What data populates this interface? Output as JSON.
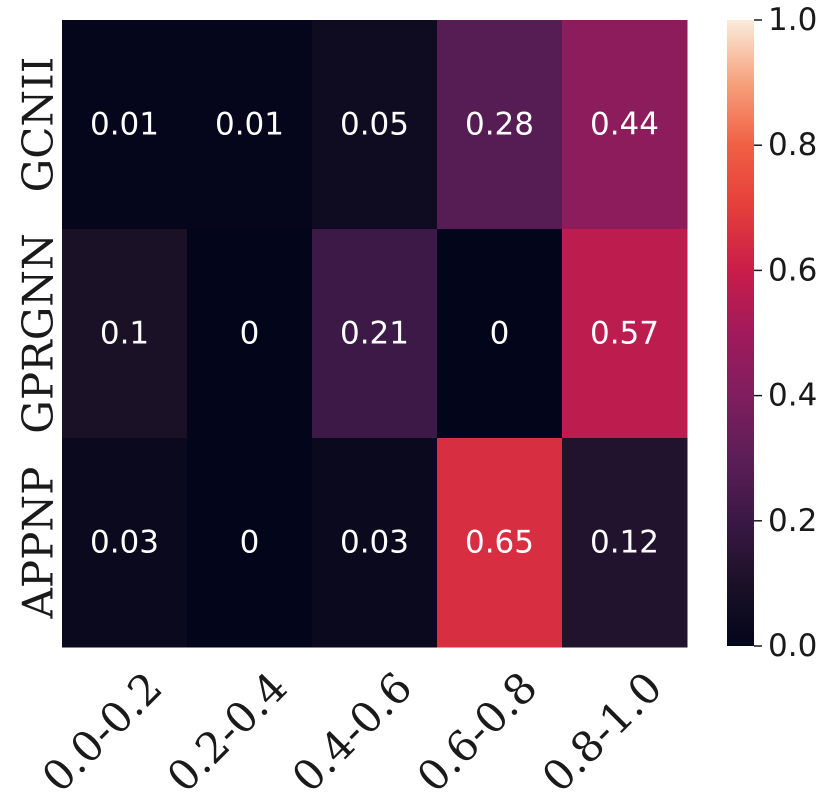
{
  "chart_data": {
    "type": "heatmap",
    "rows": [
      "GCNII",
      "GPRGNN",
      "APPNP"
    ],
    "columns": [
      "0.0-0.2",
      "0.2-0.4",
      "0.4-0.6",
      "0.6-0.8",
      "0.8-1.0"
    ],
    "values": [
      [
        0.01,
        0.01,
        0.05,
        0.28,
        0.44
      ],
      [
        0.1,
        0,
        0.21,
        0,
        0.57
      ],
      [
        0.03,
        0,
        0.03,
        0.65,
        0.12
      ]
    ],
    "value_labels": [
      [
        "0.01",
        "0.01",
        "0.05",
        "0.28",
        "0.44"
      ],
      [
        "0.1",
        "0",
        "0.21",
        "0",
        "0.57"
      ],
      [
        "0.03",
        "0",
        "0.03",
        "0.65",
        "0.12"
      ]
    ],
    "colorbar": {
      "range": [
        0.0,
        1.0
      ],
      "ticks": [
        "0.0",
        "0.2",
        "0.4",
        "0.6",
        "0.8",
        "1.0"
      ],
      "colormap": "rocket"
    },
    "title": "",
    "xlabel": "",
    "ylabel": ""
  }
}
